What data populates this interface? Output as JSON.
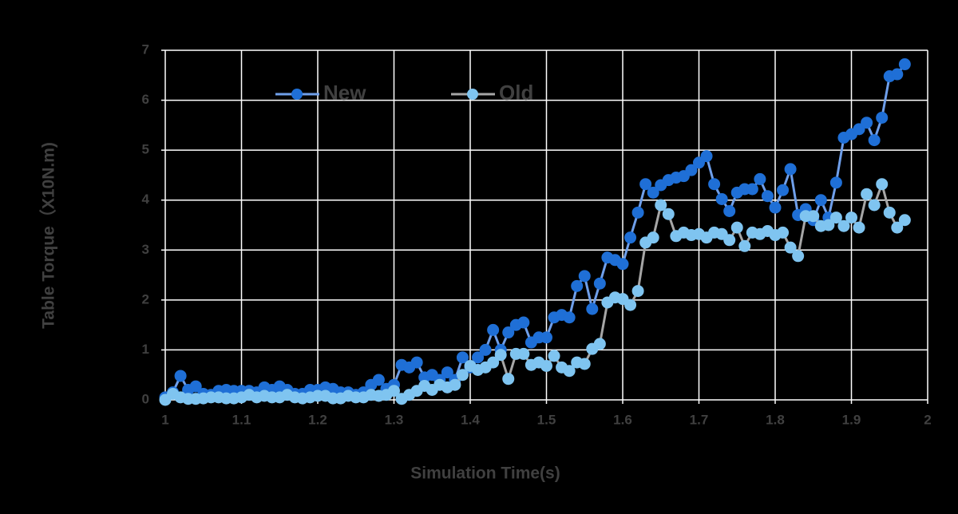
{
  "chart_data": {
    "type": "line",
    "xlabel": "Simulation Time(s)",
    "ylabel": "Table Torque（X10N.m)",
    "x": [
      1.0,
      1.01,
      1.02,
      1.03,
      1.04,
      1.05,
      1.06,
      1.07,
      1.08,
      1.09,
      1.1,
      1.11,
      1.12,
      1.13,
      1.14,
      1.15,
      1.16,
      1.17,
      1.18,
      1.19,
      1.2,
      1.21,
      1.22,
      1.23,
      1.24,
      1.25,
      1.26,
      1.27,
      1.28,
      1.29,
      1.3,
      1.31,
      1.32,
      1.33,
      1.34,
      1.35,
      1.36,
      1.37,
      1.38,
      1.39,
      1.4,
      1.41,
      1.42,
      1.43,
      1.44,
      1.45,
      1.46,
      1.47,
      1.48,
      1.49,
      1.5,
      1.51,
      1.52,
      1.53,
      1.54,
      1.55,
      1.56,
      1.57,
      1.58,
      1.59,
      1.6,
      1.61,
      1.62,
      1.63,
      1.64,
      1.65,
      1.66,
      1.67,
      1.68,
      1.69,
      1.7,
      1.71,
      1.72,
      1.73,
      1.74,
      1.75,
      1.76,
      1.77,
      1.78,
      1.79,
      1.8,
      1.81,
      1.82,
      1.83,
      1.84,
      1.85,
      1.86,
      1.87,
      1.88,
      1.89,
      1.9,
      1.91,
      1.92,
      1.93,
      1.94,
      1.95,
      1.96,
      1.97
    ],
    "series": [
      {
        "name": "New",
        "color": "#6f9fea",
        "marker_color": "#1f6fd6",
        "values": [
          0.05,
          0.15,
          0.48,
          0.2,
          0.27,
          0.12,
          0.1,
          0.18,
          0.2,
          0.18,
          0.18,
          0.18,
          0.15,
          0.25,
          0.2,
          0.27,
          0.2,
          0.12,
          0.12,
          0.2,
          0.2,
          0.25,
          0.22,
          0.15,
          0.15,
          0.1,
          0.15,
          0.3,
          0.4,
          0.22,
          0.3,
          0.7,
          0.65,
          0.75,
          0.45,
          0.5,
          0.4,
          0.55,
          0.4,
          0.85,
          0.65,
          0.85,
          1.0,
          1.4,
          1.0,
          1.35,
          1.5,
          1.55,
          1.15,
          1.25,
          1.25,
          1.65,
          1.7,
          1.65,
          2.28,
          2.48,
          1.82,
          2.33,
          2.85,
          2.8,
          2.72,
          3.25,
          3.75,
          4.32,
          4.15,
          4.3,
          4.4,
          4.45,
          4.48,
          4.6,
          4.75,
          4.88,
          4.32,
          4.02,
          3.78,
          4.15,
          4.22,
          4.22,
          4.42,
          4.08,
          3.85,
          4.2,
          4.62,
          3.7,
          3.82,
          3.6,
          4.0,
          3.65,
          4.35,
          5.25,
          5.32,
          5.42,
          5.55,
          5.2,
          5.65,
          6.48,
          6.52,
          6.72
        ]
      },
      {
        "name": "Old",
        "color": "#a6a6a6",
        "marker_color": "#7fc4f0",
        "values": [
          0.0,
          0.12,
          0.05,
          0.02,
          0.02,
          0.03,
          0.05,
          0.05,
          0.03,
          0.03,
          0.05,
          0.1,
          0.05,
          0.08,
          0.05,
          0.05,
          0.1,
          0.05,
          0.03,
          0.05,
          0.08,
          0.08,
          0.03,
          0.03,
          0.08,
          0.05,
          0.05,
          0.1,
          0.08,
          0.1,
          0.18,
          0.02,
          0.1,
          0.18,
          0.28,
          0.2,
          0.3,
          0.25,
          0.3,
          0.5,
          0.68,
          0.6,
          0.65,
          0.75,
          0.9,
          0.42,
          0.92,
          0.92,
          0.7,
          0.75,
          0.68,
          0.88,
          0.65,
          0.58,
          0.75,
          0.72,
          1.02,
          1.12,
          1.95,
          2.05,
          2.02,
          1.9,
          2.18,
          3.15,
          3.25,
          3.9,
          3.72,
          3.28,
          3.35,
          3.3,
          3.32,
          3.25,
          3.35,
          3.32,
          3.2,
          3.45,
          3.08,
          3.35,
          3.32,
          3.38,
          3.3,
          3.35,
          3.05,
          2.88,
          3.68,
          3.68,
          3.48,
          3.5,
          3.65,
          3.48,
          3.65,
          3.45,
          4.12,
          3.9,
          4.32,
          3.75,
          3.45,
          3.6
        ]
      }
    ],
    "xlim": [
      1,
      2
    ],
    "xticks": [
      1,
      1.1,
      1.2,
      1.3,
      1.4,
      1.5,
      1.6,
      1.7,
      1.8,
      1.9,
      2
    ],
    "ylim": [
      0,
      7
    ],
    "yticks": [
      0,
      1,
      2,
      3,
      4,
      5,
      6,
      7
    ],
    "grid": true,
    "legend": "top-left"
  }
}
